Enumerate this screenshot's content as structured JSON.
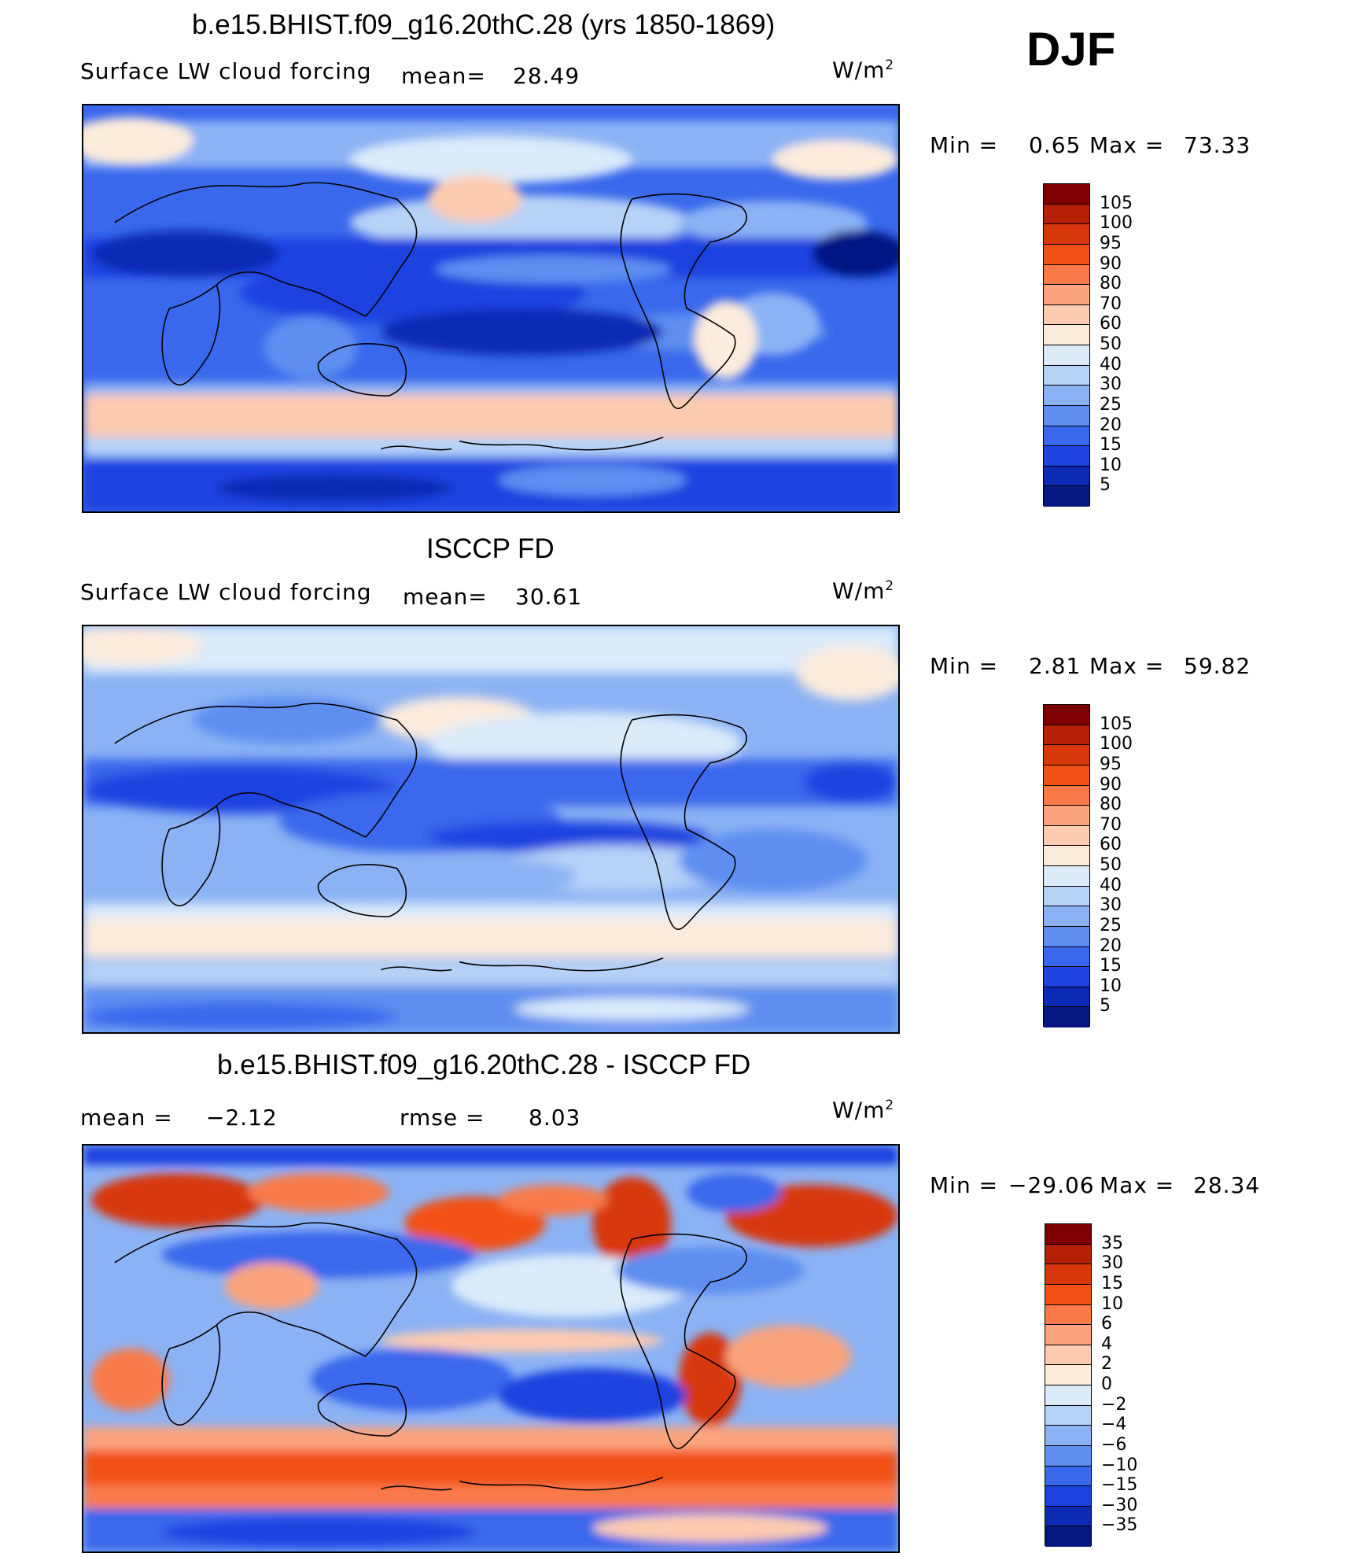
{
  "season": "DJF",
  "panels": [
    {
      "id": "model",
      "title": "b.e15.BHIST.f09_g16.20thC.28 (yrs 1850-1869)",
      "variable": "Surface LW cloud forcing",
      "mean_label": "mean=",
      "mean_value": "28.49",
      "units": "W/m",
      "units_sup": "2",
      "min_label": "Min =",
      "min_value": "0.65",
      "max_label": "Max =",
      "max_value": "73.33",
      "colorbar": {
        "levels": [
          "105",
          "100",
          "95",
          "90",
          "80",
          "70",
          "60",
          "50",
          "40",
          "30",
          "25",
          "20",
          "15",
          "10",
          "5"
        ],
        "colors": [
          "#7f0000",
          "#b51f06",
          "#d8370c",
          "#f25116",
          "#f97a48",
          "#fba47e",
          "#fdcbb0",
          "#fdebdc",
          "#dbebf9",
          "#b6d2f7",
          "#8bb2f4",
          "#5d8ef0",
          "#3a68ec",
          "#1c42e0",
          "#0d2ab5",
          "#061782"
        ]
      },
      "palette": [
        "#061782",
        "#0d2ab5",
        "#1c42e0",
        "#3a68ec",
        "#5d8ef0",
        "#8bb2f4",
        "#b6d2f7",
        "#dbebf9",
        "#fdebdc",
        "#fdcbb0",
        "#fba47e"
      ]
    },
    {
      "id": "obs",
      "title": "ISCCP FD",
      "variable": "Surface LW cloud forcing",
      "mean_label": "mean=",
      "mean_value": "30.61",
      "units": "W/m",
      "units_sup": "2",
      "min_label": "Min =",
      "min_value": "2.81",
      "max_label": "Max =",
      "max_value": "59.82",
      "colorbar": {
        "levels": [
          "105",
          "100",
          "95",
          "90",
          "80",
          "70",
          "60",
          "50",
          "40",
          "30",
          "25",
          "20",
          "15",
          "10",
          "5"
        ],
        "colors": [
          "#7f0000",
          "#b51f06",
          "#d8370c",
          "#f25116",
          "#f97a48",
          "#fba47e",
          "#fdcbb0",
          "#fdebdc",
          "#dbebf9",
          "#b6d2f7",
          "#8bb2f4",
          "#5d8ef0",
          "#3a68ec",
          "#1c42e0",
          "#0d2ab5",
          "#061782"
        ]
      }
    },
    {
      "id": "diff",
      "title": "b.e15.BHIST.f09_g16.20thC.28 - ISCCP FD",
      "mean_label": "mean =",
      "mean_value": "−2.12",
      "rmse_label": "rmse =",
      "rmse_value": "8.03",
      "units": "W/m",
      "units_sup": "2",
      "min_label": "Min =",
      "min_value": "−29.06",
      "max_label": "Max =",
      "max_value": "28.34",
      "colorbar": {
        "levels": [
          "35",
          "30",
          "15",
          "10",
          "6",
          "4",
          "2",
          "0",
          "−2",
          "−4",
          "−6",
          "−10",
          "−15",
          "−30",
          "−35"
        ],
        "colors": [
          "#7f0000",
          "#b51f06",
          "#d8370c",
          "#f25116",
          "#f97a48",
          "#fba47e",
          "#fdcbb0",
          "#fdebdc",
          "#dbebf9",
          "#b6d2f7",
          "#8bb2f4",
          "#5d8ef0",
          "#3a68ec",
          "#1c42e0",
          "#0d2ab5",
          "#061782"
        ]
      }
    }
  ]
}
